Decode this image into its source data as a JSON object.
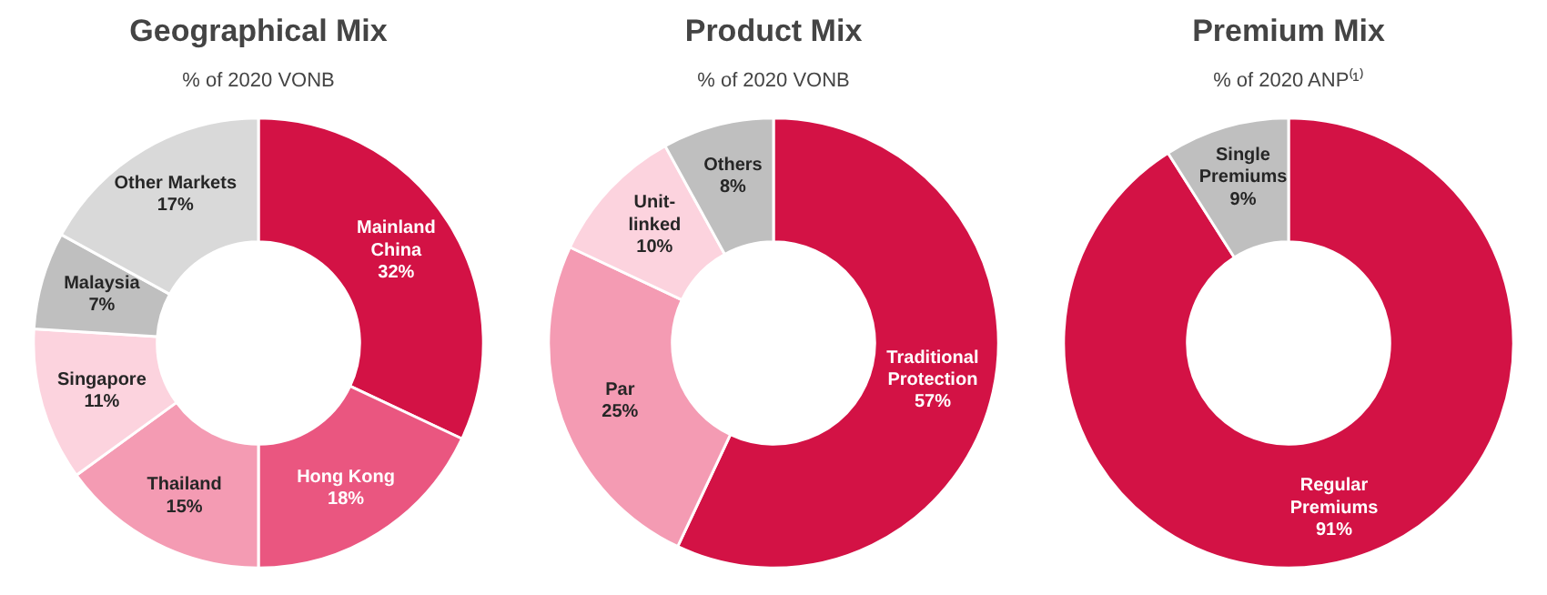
{
  "chart_data": [
    {
      "type": "donut",
      "title": "Geographical Mix",
      "subtitle": "% of 2020 VONB",
      "categories": [
        "Mainland\nChina",
        "Hong Kong",
        "Thailand",
        "Singapore",
        "Malaysia",
        "Other Markets"
      ],
      "values": [
        32,
        18,
        15,
        11,
        7,
        17
      ],
      "value_labels": [
        "32%",
        "18%",
        "15%",
        "11%",
        "7%",
        "17%"
      ],
      "colors": [
        "#d31245",
        "#ea5680",
        "#f49bb3",
        "#fcd3de",
        "#bfbfbf",
        "#d9d9d9"
      ],
      "legend": false
    },
    {
      "type": "donut",
      "title": "Product Mix",
      "subtitle": "% of 2020 VONB",
      "categories": [
        "Traditional\nProtection",
        "Par",
        "Unit-\nlinked",
        "Others"
      ],
      "values": [
        57,
        25,
        10,
        8
      ],
      "value_labels": [
        "57%",
        "25%",
        "10%",
        "8%"
      ],
      "colors": [
        "#d31245",
        "#f49bb3",
        "#fcd3de",
        "#bfbfbf"
      ],
      "legend": false
    },
    {
      "type": "donut",
      "title": "Premium Mix",
      "subtitle": "% of 2020 ANP⁽¹⁾",
      "categories": [
        "Regular\nPremiums",
        "Single\nPremiums"
      ],
      "values": [
        91,
        9
      ],
      "value_labels": [
        "91%",
        "9%"
      ],
      "colors": [
        "#d31245",
        "#bfbfbf"
      ],
      "legend": false
    }
  ]
}
